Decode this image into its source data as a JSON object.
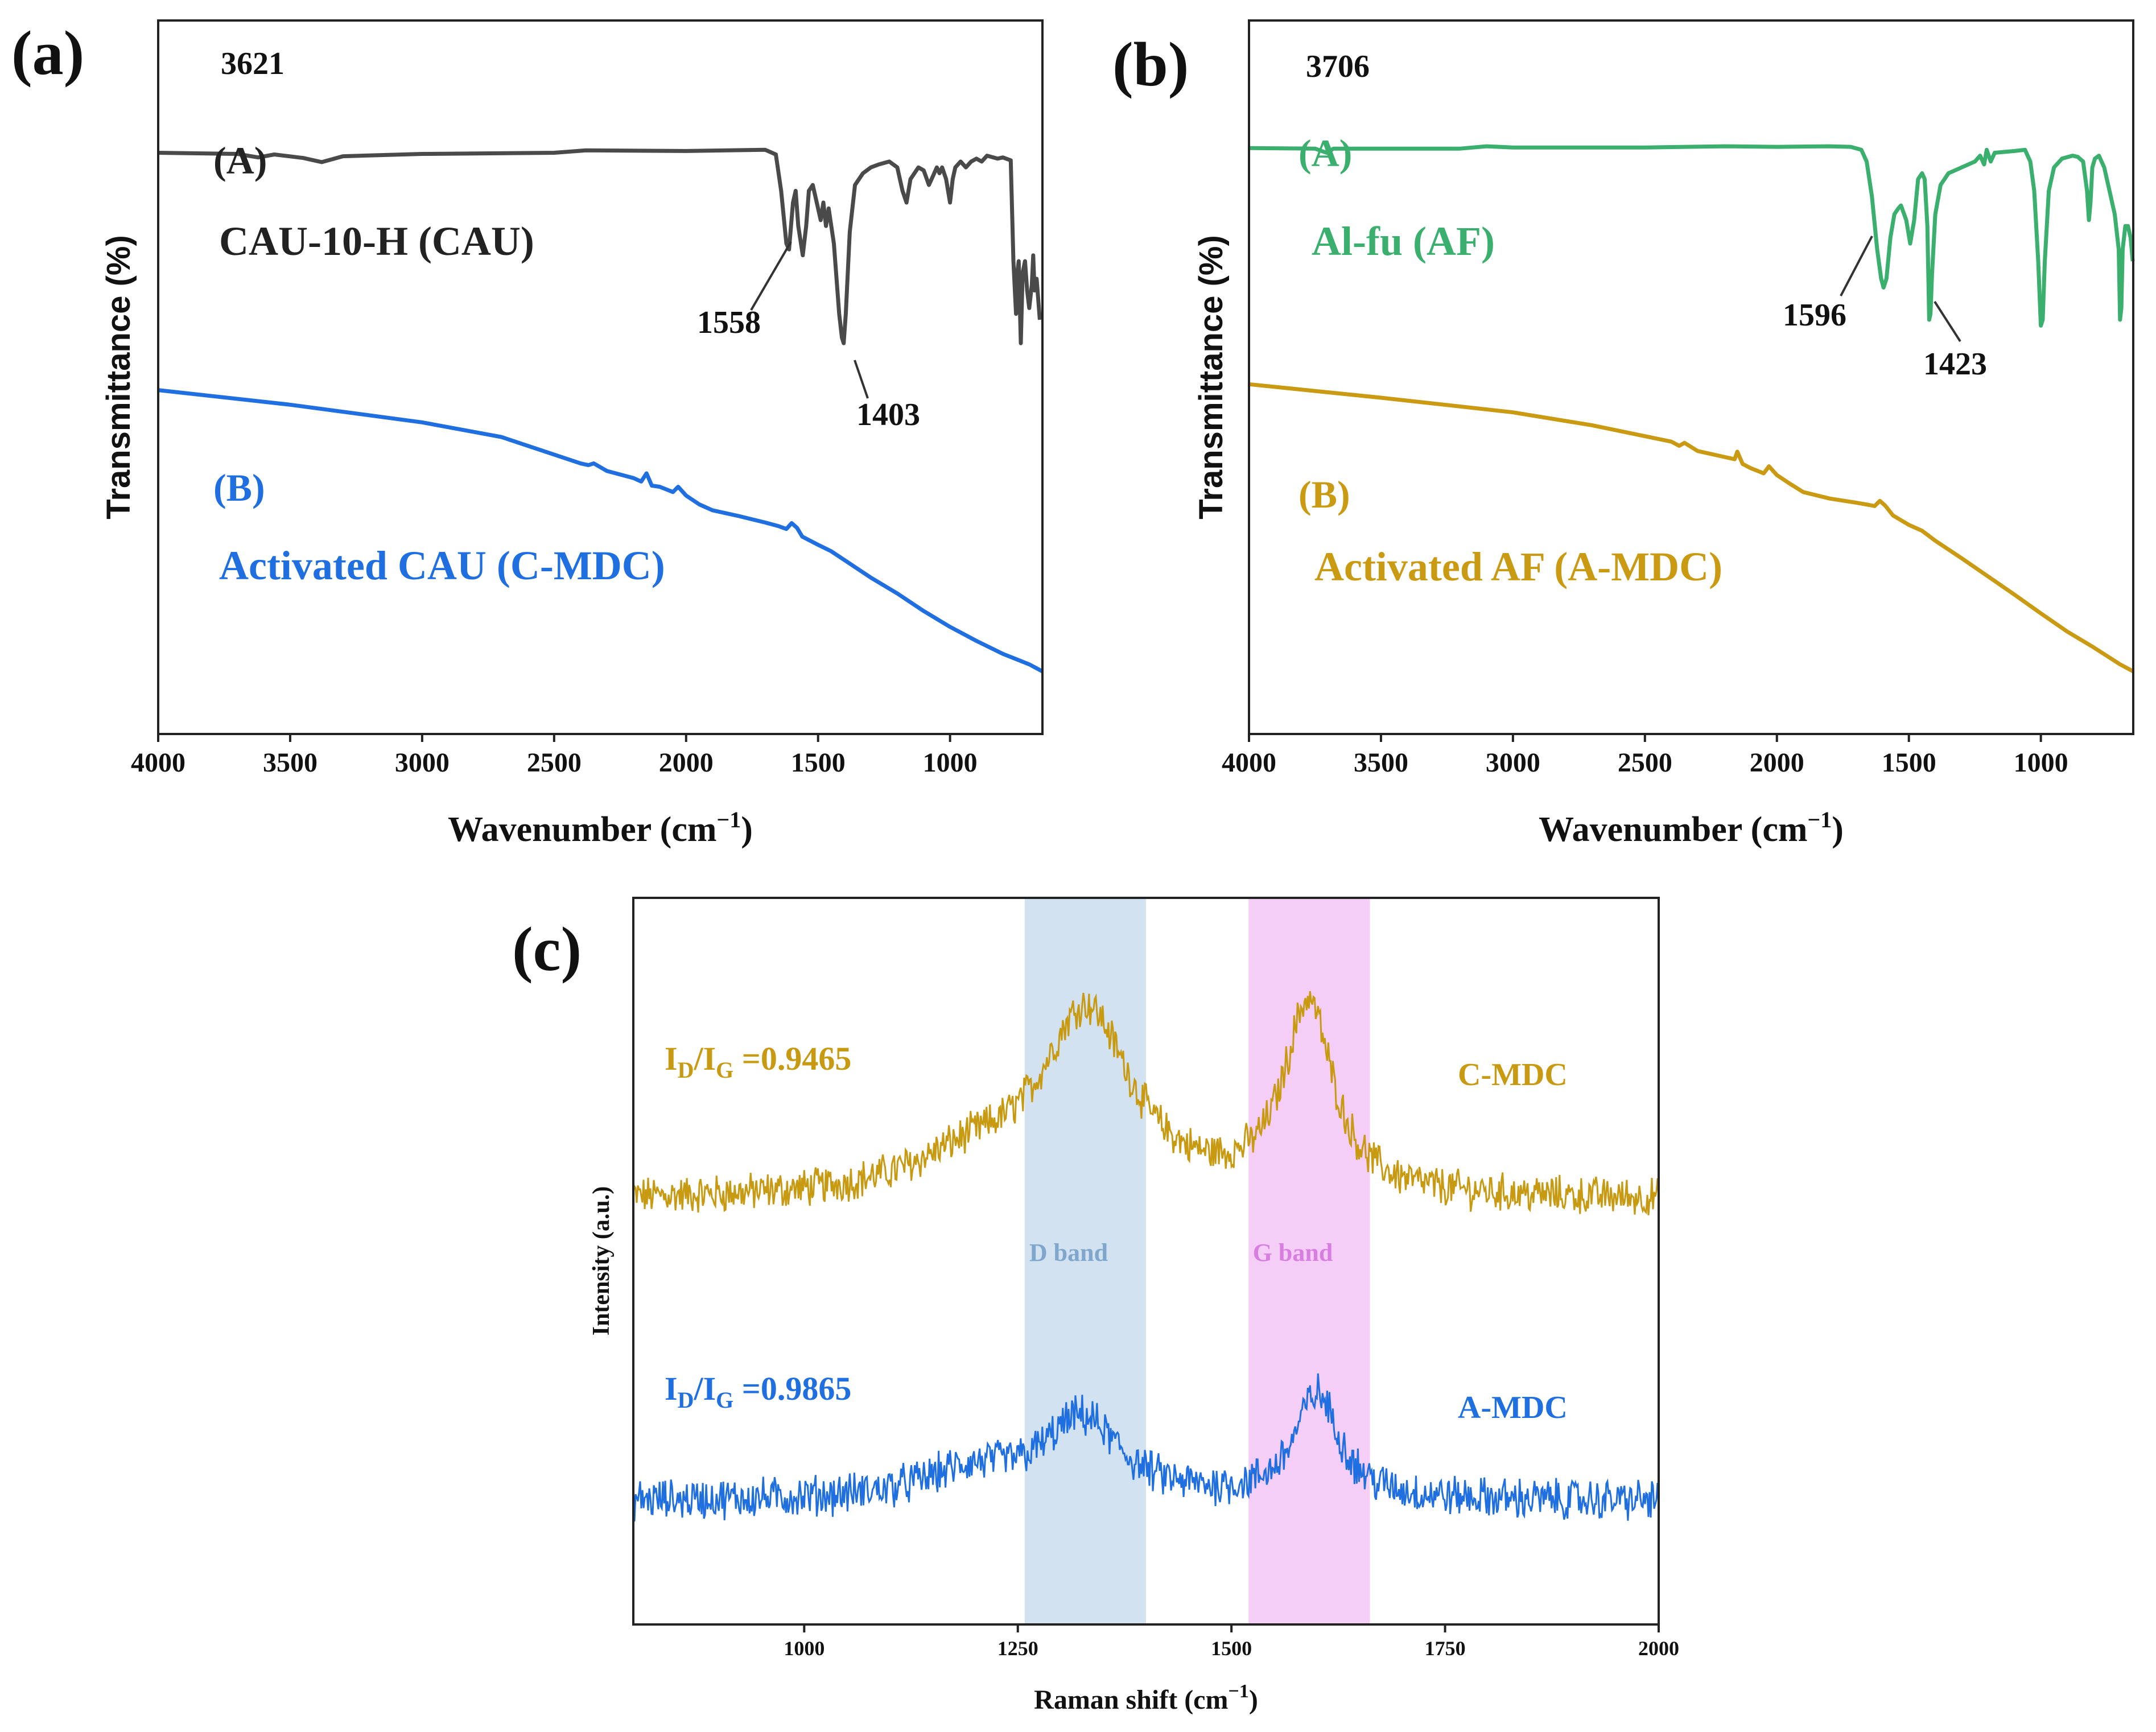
{
  "colors": {
    "cau": "#4a4a4a",
    "c_mdc_ir": "#1f6fe0",
    "af": "#3aaf6e",
    "a_mdc_ir": "#c99a12",
    "raman_c": "#c89a12",
    "raman_a": "#1f6fe0",
    "d_band": "#9bbfe0",
    "g_band": "#e992f0",
    "axis": "#222222"
  },
  "chart_data": [
    {
      "id": "a",
      "type": "line",
      "panel_label": "(a)",
      "xlabel": "Wavenumber (cm",
      "xlabel_sup": "−1",
      "xlabel_close": ")",
      "ylabel": "Transmittance (%)",
      "xlim": [
        4000,
        650
      ],
      "ylim": [
        0,
        100
      ],
      "x_ticks": [
        "4000",
        "3500",
        "3000",
        "2500",
        "2000",
        "1500",
        "1000"
      ],
      "series": [
        {
          "name": "CAU-10-H (CAU)",
          "tag": "(A)",
          "color_key": "cau",
          "points": [
            [
              4000,
              88.5
            ],
            [
              3700,
              88.3
            ],
            [
              3621,
              87.7
            ],
            [
              3560,
              88.2
            ],
            [
              3450,
              87.6
            ],
            [
              3380,
              86.9
            ],
            [
              3300,
              87.9
            ],
            [
              3000,
              88.3
            ],
            [
              2500,
              88.5
            ],
            [
              2380,
              88.9
            ],
            [
              2000,
              88.8
            ],
            [
              1700,
              89
            ],
            [
              1660,
              88.2
            ],
            [
              1640,
              82
            ],
            [
              1620,
              73
            ],
            [
              1610,
              72
            ],
            [
              1595,
              80
            ],
            [
              1585,
              82
            ],
            [
              1575,
              76
            ],
            [
              1558,
              71
            ],
            [
              1545,
              76
            ],
            [
              1535,
              82
            ],
            [
              1520,
              83
            ],
            [
              1500,
              79
            ],
            [
              1490,
              77
            ],
            [
              1480,
              80
            ],
            [
              1470,
              76
            ],
            [
              1460,
              79
            ],
            [
              1440,
              73
            ],
            [
              1420,
              61
            ],
            [
              1410,
              57
            ],
            [
              1403,
              56
            ],
            [
              1395,
              61
            ],
            [
              1380,
              75
            ],
            [
              1360,
              83
            ],
            [
              1330,
              85
            ],
            [
              1300,
              86
            ],
            [
              1270,
              86.5
            ],
            [
              1230,
              87
            ],
            [
              1200,
              86
            ],
            [
              1180,
              82
            ],
            [
              1165,
              80
            ],
            [
              1150,
              84
            ],
            [
              1120,
              86
            ],
            [
              1100,
              85.5
            ],
            [
              1080,
              83
            ],
            [
              1070,
              84
            ],
            [
              1050,
              86
            ],
            [
              1040,
              85
            ],
            [
              1030,
              86
            ],
            [
              1015,
              84
            ],
            [
              1000,
              80
            ],
            [
              990,
              84
            ],
            [
              980,
              86
            ],
            [
              960,
              87
            ],
            [
              940,
              86
            ],
            [
              920,
              87
            ],
            [
              900,
              87.5
            ],
            [
              880,
              87
            ],
            [
              860,
              88
            ],
            [
              820,
              87.5
            ],
            [
              800,
              87.7
            ],
            [
              770,
              87.2
            ],
            [
              760,
              70
            ],
            [
              750,
              61
            ],
            [
              745,
              68
            ],
            [
              740,
              70
            ],
            [
              732,
              56
            ],
            [
              725,
              68
            ],
            [
              716,
              70
            ],
            [
              708,
              65
            ],
            [
              700,
              62
            ],
            [
              690,
              66
            ],
            [
              685,
              71
            ],
            [
              680,
              65
            ],
            [
              672,
              67
            ],
            [
              660,
              60
            ]
          ]
        },
        {
          "name": "Activated CAU (C-MDC)",
          "tag": "(B)",
          "color_key": "c_mdc_ir",
          "points": [
            [
              4000,
              48
            ],
            [
              3500,
              45.5
            ],
            [
              3000,
              42.5
            ],
            [
              2700,
              40
            ],
            [
              2500,
              37
            ],
            [
              2400,
              35.5
            ],
            [
              2370,
              35.2
            ],
            [
              2350,
              35.5
            ],
            [
              2300,
              34.2
            ],
            [
              2200,
              33
            ],
            [
              2170,
              32.4
            ],
            [
              2150,
              33.8
            ],
            [
              2130,
              31.7
            ],
            [
              2100,
              31.5
            ],
            [
              2050,
              30.6
            ],
            [
              2030,
              31.5
            ],
            [
              2000,
              30
            ],
            [
              1950,
              28.5
            ],
            [
              1900,
              27.5
            ],
            [
              1800,
              26.5
            ],
            [
              1700,
              25.4
            ],
            [
              1650,
              24.8
            ],
            [
              1620,
              24.3
            ],
            [
              1600,
              25.3
            ],
            [
              1580,
              24.5
            ],
            [
              1560,
              23
            ],
            [
              1500,
              21.6
            ],
            [
              1450,
              20.5
            ],
            [
              1400,
              19
            ],
            [
              1300,
              16
            ],
            [
              1200,
              13.3
            ],
            [
              1100,
              10.3
            ],
            [
              1000,
              7.6
            ],
            [
              900,
              5.2
            ],
            [
              800,
              3
            ],
            [
              700,
              1.2
            ],
            [
              650,
              0
            ]
          ]
        }
      ],
      "annotations": [
        {
          "text": "3621",
          "x": 3621
        },
        {
          "text": "1558",
          "x": 1558
        },
        {
          "text": "1403",
          "x": 1403
        }
      ]
    },
    {
      "id": "b",
      "type": "line",
      "panel_label": "(b)",
      "xlabel": "Wavenumber (cm",
      "xlabel_sup": "−1",
      "xlabel_close": ")",
      "ylabel": "Transmittance (%)",
      "xlim": [
        4000,
        650
      ],
      "ylim": [
        0,
        100
      ],
      "x_ticks": [
        "4000",
        "3500",
        "3000",
        "2500",
        "2000",
        "1500",
        "1000"
      ],
      "series": [
        {
          "name": "Al-fu (AF)",
          "tag": "(A)",
          "color_key": "af",
          "points": [
            [
              4000,
              89.3
            ],
            [
              3750,
              89.2
            ],
            [
              3706,
              88.5
            ],
            [
              3680,
              89.2
            ],
            [
              3500,
              89.2
            ],
            [
              3200,
              89.2
            ],
            [
              3100,
              89.6
            ],
            [
              3000,
              89.4
            ],
            [
              2500,
              89.4
            ],
            [
              2200,
              89.6
            ],
            [
              2000,
              89.5
            ],
            [
              1800,
              89.6
            ],
            [
              1720,
              89.5
            ],
            [
              1680,
              89
            ],
            [
              1660,
              87
            ],
            [
              1640,
              81
            ],
            [
              1620,
              72
            ],
            [
              1605,
              67
            ],
            [
              1596,
              65.5
            ],
            [
              1585,
              67
            ],
            [
              1570,
              74
            ],
            [
              1555,
              78
            ],
            [
              1540,
              79
            ],
            [
              1530,
              79.5
            ],
            [
              1510,
              77
            ],
            [
              1495,
              73
            ],
            [
              1480,
              77
            ],
            [
              1465,
              84
            ],
            [
              1450,
              85
            ],
            [
              1440,
              84
            ],
            [
              1430,
              76
            ],
            [
              1423,
              60
            ],
            [
              1418,
              61
            ],
            [
              1412,
              68
            ],
            [
              1400,
              78
            ],
            [
              1380,
              83
            ],
            [
              1350,
              85
            ],
            [
              1300,
              86
            ],
            [
              1250,
              87
            ],
            [
              1230,
              88
            ],
            [
              1215,
              86.5
            ],
            [
              1205,
              89
            ],
            [
              1190,
              87
            ],
            [
              1175,
              88.5
            ],
            [
              1100,
              88.8
            ],
            [
              1060,
              89
            ],
            [
              1040,
              87
            ],
            [
              1025,
              82
            ],
            [
              1010,
              70
            ],
            [
              1000,
              59
            ],
            [
              993,
              60
            ],
            [
              985,
              70
            ],
            [
              970,
              82
            ],
            [
              950,
              86
            ],
            [
              920,
              87.5
            ],
            [
              880,
              88
            ],
            [
              860,
              87.8
            ],
            [
              840,
              87
            ],
            [
              825,
              82
            ],
            [
              818,
              77
            ],
            [
              812,
              80
            ],
            [
              805,
              86
            ],
            [
              795,
              87.5
            ],
            [
              780,
              88
            ],
            [
              760,
              86
            ],
            [
              740,
              82
            ],
            [
              720,
              78
            ],
            [
              705,
              72
            ],
            [
              700,
              60
            ],
            [
              695,
              62
            ],
            [
              690,
              72
            ],
            [
              680,
              76
            ],
            [
              670,
              76
            ],
            [
              660,
              74
            ],
            [
              652,
              70
            ]
          ]
        },
        {
          "name": "Activated AF (A-MDC)",
          "tag": "(B)",
          "color_key": "a_mdc_ir",
          "points": [
            [
              4000,
              49
            ],
            [
              3500,
              46.7
            ],
            [
              3000,
              44.2
            ],
            [
              2700,
              42
            ],
            [
              2400,
              39.2
            ],
            [
              2370,
              38.5
            ],
            [
              2350,
              39
            ],
            [
              2300,
              37.6
            ],
            [
              2200,
              36.6
            ],
            [
              2160,
              36.2
            ],
            [
              2150,
              37.5
            ],
            [
              2130,
              35.4
            ],
            [
              2100,
              34.7
            ],
            [
              2050,
              33.8
            ],
            [
              2030,
              35
            ],
            [
              2000,
              33.5
            ],
            [
              1950,
              32
            ],
            [
              1900,
              30.6
            ],
            [
              1800,
              29.5
            ],
            [
              1700,
              28.8
            ],
            [
              1650,
              28.4
            ],
            [
              1630,
              28.2
            ],
            [
              1610,
              29.1
            ],
            [
              1590,
              28.3
            ],
            [
              1560,
              26.6
            ],
            [
              1500,
              25
            ],
            [
              1450,
              24
            ],
            [
              1400,
              22.3
            ],
            [
              1300,
              19.3
            ],
            [
              1200,
              16.2
            ],
            [
              1100,
              13.1
            ],
            [
              1000,
              9.9
            ],
            [
              900,
              6.8
            ],
            [
              800,
              4.1
            ],
            [
              700,
              1.2
            ],
            [
              650,
              0
            ]
          ]
        }
      ],
      "annotations": [
        {
          "text": "3706",
          "x": 3706
        },
        {
          "text": "1596",
          "x": 1596
        },
        {
          "text": "1423",
          "x": 1423
        }
      ]
    },
    {
      "id": "c",
      "type": "line",
      "panel_label": "(c)",
      "xlabel": "Raman shift (cm",
      "xlabel_sup": "−1",
      "xlabel_close": ")",
      "ylabel": "Intensity (a.u.)",
      "xlim": [
        800,
        2000
      ],
      "ylim": [
        0,
        100
      ],
      "x_ticks": [
        "1000",
        "1250",
        "1500",
        "1750",
        "2000"
      ],
      "bands": [
        {
          "label": "D band",
          "from": 1258,
          "to": 1400,
          "color_key": "d_band"
        },
        {
          "label": "G band",
          "from": 1520,
          "to": 1662,
          "color_key": "g_band"
        }
      ],
      "series": [
        {
          "name": "C-MDC",
          "ratio_main": "I",
          "ratio_sub1": "D",
          "ratio_slash": "/I",
          "ratio_sub2": "G",
          "ratio_value": " =0.9465",
          "color_key": "raman_c",
          "baseline": 60,
          "noise": 1.6,
          "peaks": [
            {
              "center": 1330,
              "height": 28,
              "width": 82
            },
            {
              "center": 1195,
              "height": 5,
              "width": 110
            },
            {
              "center": 1590,
              "height": 29,
              "width": 44
            }
          ]
        },
        {
          "name": "A-MDC",
          "ratio_main": "I",
          "ratio_sub1": "D",
          "ratio_slash": "/I",
          "ratio_sub2": "G",
          "ratio_value": " =0.9865",
          "color_key": "raman_a",
          "baseline": 14,
          "noise": 1.7,
          "peaks": [
            {
              "center": 1325,
              "height": 12,
              "width": 70
            },
            {
              "center": 1195,
              "height": 4,
              "width": 90
            },
            {
              "center": 1600,
              "height": 16,
              "width": 40
            }
          ]
        }
      ]
    }
  ]
}
